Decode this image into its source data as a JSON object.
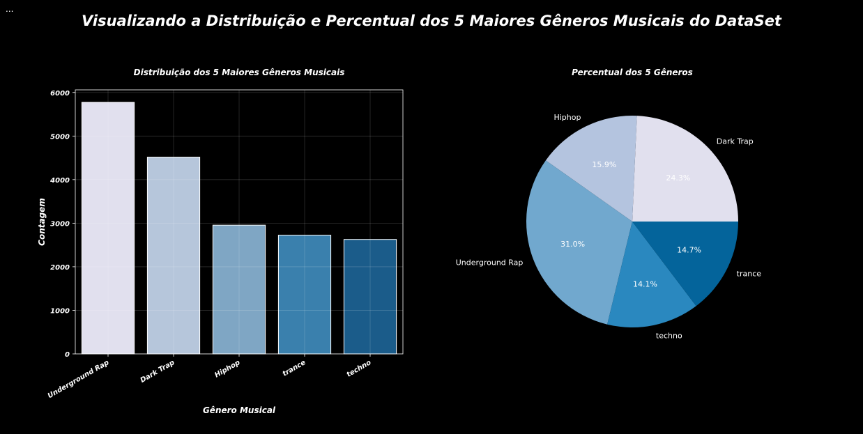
{
  "toolbar": {
    "overflow_label": "..."
  },
  "figure": {
    "title": "Visualizando a Distribuição e Percentual dos 5 Maiores Gêneros Musicais do DataSet"
  },
  "chart_data": [
    {
      "type": "bar",
      "title": "Distribuição dos 5 Maiores Gêneros Musicais",
      "xlabel": "Gênero Musical",
      "ylabel": "Contagem",
      "categories": [
        "Underground Rap",
        "Dark Trap",
        "Hiphop",
        "trance",
        "techno"
      ],
      "values": [
        5775,
        4516,
        2955,
        2725,
        2627
      ],
      "ylim": [
        0,
        6060
      ],
      "yticks": [
        0,
        1000,
        2000,
        3000,
        4000,
        5000,
        6000
      ],
      "grid": true,
      "colors": [
        "#E1E0EE",
        "#B6C6DB",
        "#7FA6C4",
        "#3A80AD",
        "#1B5C8A"
      ]
    },
    {
      "type": "pie",
      "title": "Percentual dos 5 Gêneros",
      "labels": [
        "Dark Trap",
        "Hiphop",
        "Underground Rap",
        "techno",
        "trance"
      ],
      "values": [
        24.3,
        15.9,
        31.0,
        14.1,
        14.7
      ],
      "value_labels": [
        "24.3%",
        "15.9%",
        "31.0%",
        "14.1%",
        "14.7%"
      ],
      "colors": [
        "#E1E0EE",
        "#B4C4DF",
        "#71A8CE",
        "#2A88BF",
        "#04649B"
      ],
      "start_angle": 0
    }
  ]
}
